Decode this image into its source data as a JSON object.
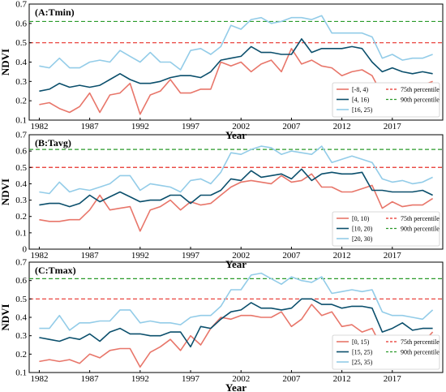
{
  "chart_data": [
    {
      "type": "line",
      "panel_label": "(A:Tmin)",
      "xlabel": "Year",
      "ylabel": "NDVI",
      "xlim": [
        1981,
        2022
      ],
      "ylim": [
        0.1,
        0.7
      ],
      "x_ticks": [
        1982,
        1987,
        1992,
        1997,
        2002,
        2007,
        2012,
        2017
      ],
      "y_ticks": [
        0.1,
        0.2,
        0.3,
        0.4,
        0.5,
        0.6,
        0.7
      ],
      "grid": false,
      "legend_position": "bottom-right",
      "x": [
        1982,
        1983,
        1984,
        1985,
        1986,
        1987,
        1988,
        1989,
        1990,
        1991,
        1992,
        1993,
        1994,
        1995,
        1996,
        1997,
        1998,
        1999,
        2000,
        2001,
        2002,
        2003,
        2004,
        2005,
        2006,
        2007,
        2008,
        2009,
        2010,
        2011,
        2012,
        2013,
        2014,
        2015,
        2016,
        2017,
        2018,
        2019,
        2020,
        2021
      ],
      "series": [
        {
          "name": "[-8, 4)",
          "color": "#e8766a",
          "values": [
            0.18,
            0.19,
            0.16,
            0.14,
            0.17,
            0.24,
            0.14,
            0.23,
            0.24,
            0.29,
            0.13,
            0.23,
            0.25,
            0.31,
            0.24,
            0.24,
            0.26,
            0.26,
            0.4,
            0.38,
            0.4,
            0.35,
            0.39,
            0.41,
            0.35,
            0.47,
            0.39,
            0.41,
            0.38,
            0.37,
            0.33,
            0.35,
            0.36,
            0.33,
            0.23,
            0.27,
            0.25,
            0.26,
            0.28,
            0.3
          ]
        },
        {
          "name": "[4, 16)",
          "color": "#0b4f6c",
          "values": [
            0.25,
            0.26,
            0.29,
            0.27,
            0.28,
            0.27,
            0.28,
            0.31,
            0.34,
            0.31,
            0.29,
            0.29,
            0.3,
            0.32,
            0.33,
            0.33,
            0.32,
            0.35,
            0.41,
            0.42,
            0.43,
            0.48,
            0.45,
            0.45,
            0.44,
            0.44,
            0.52,
            0.45,
            0.47,
            0.47,
            0.47,
            0.48,
            0.47,
            0.4,
            0.35,
            0.37,
            0.35,
            0.34,
            0.35,
            0.34
          ]
        },
        {
          "name": "[16, 25)",
          "color": "#93cce8",
          "values": [
            0.38,
            0.37,
            0.42,
            0.37,
            0.37,
            0.4,
            0.41,
            0.4,
            0.46,
            0.43,
            0.4,
            0.45,
            0.4,
            0.4,
            0.36,
            0.46,
            0.47,
            0.44,
            0.48,
            0.59,
            0.57,
            0.62,
            0.63,
            0.6,
            0.61,
            0.63,
            0.63,
            0.62,
            0.64,
            0.55,
            0.55,
            0.55,
            0.55,
            0.53,
            0.42,
            0.44,
            0.41,
            0.42,
            0.42,
            0.44
          ]
        }
      ],
      "reference_lines": [
        {
          "name": "75th percentile",
          "color": "#e8302a",
          "y": 0.5
        },
        {
          "name": "90th percentile",
          "color": "#2a9a2a",
          "y": 0.61
        }
      ]
    },
    {
      "type": "line",
      "panel_label": "(B:Tavg)",
      "xlabel": "Year",
      "ylabel": "NDVI",
      "xlim": [
        1981,
        2022
      ],
      "ylim": [
        0.0,
        0.7
      ],
      "x_ticks": [
        1982,
        1987,
        1992,
        1997,
        2002,
        2007,
        2012,
        2017
      ],
      "y_ticks": [
        0.0,
        0.1,
        0.2,
        0.3,
        0.4,
        0.5,
        0.6,
        0.7
      ],
      "grid": false,
      "legend_position": "bottom-right",
      "x": [
        1982,
        1983,
        1984,
        1985,
        1986,
        1987,
        1988,
        1989,
        1990,
        1991,
        1992,
        1993,
        1994,
        1995,
        1996,
        1997,
        1998,
        1999,
        2000,
        2001,
        2002,
        2003,
        2004,
        2005,
        2006,
        2007,
        2008,
        2009,
        2010,
        2011,
        2012,
        2013,
        2014,
        2015,
        2016,
        2017,
        2018,
        2019,
        2020,
        2021
      ],
      "series": [
        {
          "name": "[0, 10)",
          "color": "#e8766a",
          "values": [
            0.18,
            0.17,
            0.17,
            0.18,
            0.18,
            0.24,
            0.33,
            0.24,
            0.25,
            0.26,
            0.11,
            0.24,
            0.26,
            0.3,
            0.24,
            0.29,
            0.27,
            0.28,
            0.33,
            0.38,
            0.41,
            0.42,
            0.41,
            0.4,
            0.45,
            0.41,
            0.42,
            0.46,
            0.38,
            0.38,
            0.35,
            0.35,
            0.37,
            0.39,
            0.25,
            0.29,
            0.26,
            0.27,
            0.27,
            0.31
          ]
        },
        {
          "name": "[10, 20)",
          "color": "#0b4f6c",
          "values": [
            0.27,
            0.28,
            0.28,
            0.26,
            0.28,
            0.33,
            0.29,
            0.32,
            0.35,
            0.32,
            0.29,
            0.3,
            0.3,
            0.33,
            0.33,
            0.28,
            0.33,
            0.33,
            0.36,
            0.43,
            0.42,
            0.48,
            0.44,
            0.45,
            0.46,
            0.43,
            0.49,
            0.42,
            0.46,
            0.47,
            0.46,
            0.46,
            0.47,
            0.36,
            0.36,
            0.35,
            0.35,
            0.35,
            0.36,
            0.33
          ]
        },
        {
          "name": "[20, 30)",
          "color": "#93cce8",
          "values": [
            0.35,
            0.34,
            0.41,
            0.35,
            0.37,
            0.36,
            0.38,
            0.4,
            0.45,
            0.45,
            0.36,
            0.4,
            0.39,
            0.38,
            0.35,
            0.42,
            0.43,
            0.4,
            0.47,
            0.59,
            0.58,
            0.61,
            0.63,
            0.62,
            0.58,
            0.6,
            0.59,
            0.58,
            0.63,
            0.53,
            0.55,
            0.57,
            0.55,
            0.53,
            0.43,
            0.41,
            0.42,
            0.4,
            0.41,
            0.44
          ]
        }
      ],
      "reference_lines": [
        {
          "name": "75th percentile",
          "color": "#e8302a",
          "y": 0.5
        },
        {
          "name": "90th percentile",
          "color": "#2a9a2a",
          "y": 0.61
        }
      ]
    },
    {
      "type": "line",
      "panel_label": "(C:Tmax)",
      "xlabel": "Year",
      "ylabel": "NDVI",
      "xlim": [
        1981,
        2022
      ],
      "ylim": [
        0.1,
        0.7
      ],
      "x_ticks": [
        1982,
        1987,
        1992,
        1997,
        2002,
        2007,
        2012,
        2017
      ],
      "y_ticks": [
        0.1,
        0.2,
        0.3,
        0.4,
        0.5,
        0.6,
        0.7
      ],
      "grid": false,
      "legend_position": "bottom-right",
      "x": [
        1982,
        1983,
        1984,
        1985,
        1986,
        1987,
        1988,
        1989,
        1990,
        1991,
        1992,
        1993,
        1994,
        1995,
        1996,
        1997,
        1998,
        1999,
        2000,
        2001,
        2002,
        2003,
        2004,
        2005,
        2006,
        2007,
        2008,
        2009,
        2010,
        2011,
        2012,
        2013,
        2014,
        2015,
        2016,
        2017,
        2018,
        2019,
        2020,
        2021
      ],
      "series": [
        {
          "name": "[0, 15)",
          "color": "#e8766a",
          "values": [
            0.16,
            0.17,
            0.16,
            0.17,
            0.15,
            0.2,
            0.18,
            0.22,
            0.23,
            0.23,
            0.13,
            0.21,
            0.24,
            0.28,
            0.22,
            0.3,
            0.25,
            0.34,
            0.4,
            0.39,
            0.41,
            0.41,
            0.4,
            0.4,
            0.43,
            0.35,
            0.39,
            0.47,
            0.41,
            0.43,
            0.35,
            0.36,
            0.32,
            0.34,
            0.23,
            0.28,
            0.26,
            0.26,
            0.26,
            0.32
          ]
        },
        {
          "name": "[15, 25)",
          "color": "#0b4f6c",
          "values": [
            0.29,
            0.28,
            0.27,
            0.29,
            0.28,
            0.31,
            0.27,
            0.32,
            0.34,
            0.31,
            0.31,
            0.3,
            0.3,
            0.32,
            0.32,
            0.24,
            0.35,
            0.34,
            0.39,
            0.43,
            0.44,
            0.48,
            0.45,
            0.45,
            0.44,
            0.45,
            0.5,
            0.5,
            0.47,
            0.47,
            0.45,
            0.46,
            0.46,
            0.45,
            0.32,
            0.34,
            0.37,
            0.33,
            0.34,
            0.34
          ]
        },
        {
          "name": "[25, 35)",
          "color": "#93cce8",
          "values": [
            0.34,
            0.34,
            0.41,
            0.33,
            0.37,
            0.37,
            0.38,
            0.38,
            0.44,
            0.44,
            0.37,
            0.38,
            0.37,
            0.37,
            0.36,
            0.4,
            0.41,
            0.41,
            0.46,
            0.55,
            0.55,
            0.63,
            0.64,
            0.61,
            0.58,
            0.62,
            0.6,
            0.59,
            0.62,
            0.53,
            0.54,
            0.55,
            0.54,
            0.55,
            0.43,
            0.41,
            0.41,
            0.4,
            0.39,
            0.44
          ]
        }
      ],
      "reference_lines": [
        {
          "name": "75th percentile",
          "color": "#e8302a",
          "y": 0.5
        },
        {
          "name": "90th percentile",
          "color": "#2a9a2a",
          "y": 0.61
        }
      ]
    }
  ]
}
